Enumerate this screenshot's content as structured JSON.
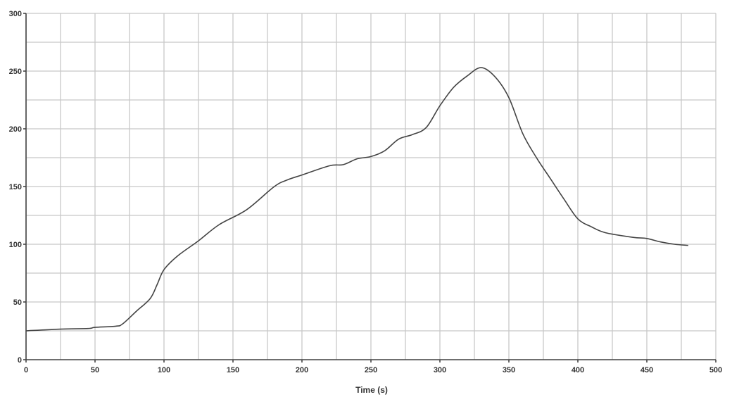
{
  "chart_data": {
    "type": "line",
    "title": "",
    "xlabel": "Time (s)",
    "ylabel": "",
    "xlim": [
      0,
      500
    ],
    "ylim": [
      0,
      300
    ],
    "x_ticks": [
      0,
      50,
      100,
      150,
      200,
      250,
      300,
      350,
      400,
      450,
      500
    ],
    "y_ticks": [
      0,
      50,
      100,
      150,
      200,
      250,
      300
    ],
    "grid": true,
    "grid_step": {
      "x": 25,
      "y": 25
    },
    "line_color": "#444444",
    "series": [
      {
        "x": [
          0,
          25,
          45,
          50,
          65,
          70,
          80,
          90,
          95,
          100,
          110,
          125,
          140,
          160,
          180,
          190,
          200,
          220,
          230,
          240,
          250,
          260,
          270,
          280,
          290,
          300,
          310,
          320,
          330,
          340,
          350,
          360,
          370,
          380,
          390,
          400,
          410,
          420,
          440,
          450,
          460,
          470,
          480
        ],
        "y": [
          25,
          26.5,
          27,
          28,
          29,
          31,
          42,
          53,
          65,
          78,
          90,
          103,
          117,
          130,
          150,
          156,
          160,
          168,
          169,
          174,
          176,
          181,
          191,
          195,
          201,
          220,
          236,
          246,
          253,
          245,
          227,
          196,
          175,
          157,
          139,
          122,
          115,
          110,
          106,
          105,
          102,
          100,
          99
        ]
      }
    ]
  }
}
